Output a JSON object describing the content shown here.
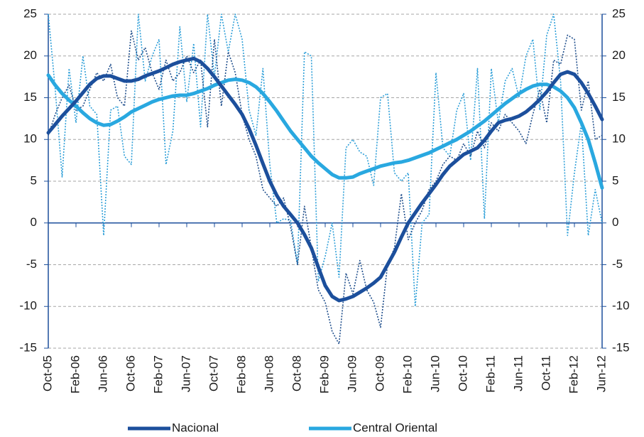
{
  "chart_data": {
    "type": "line",
    "categories": [
      "Oct-05",
      null,
      null,
      null,
      "Feb-06",
      null,
      null,
      null,
      "Jun-06",
      null,
      null,
      null,
      "Oct-06",
      null,
      null,
      null,
      "Feb-07",
      null,
      null,
      null,
      "Jun-07",
      null,
      null,
      null,
      "Oct-07",
      null,
      null,
      null,
      "Feb-08",
      null,
      null,
      null,
      "Jun-08",
      null,
      null,
      null,
      "Oct-08",
      null,
      null,
      null,
      "Feb-09",
      null,
      null,
      null,
      "Jun-09",
      null,
      null,
      null,
      "Oct-09",
      null,
      null,
      null,
      "Feb-10",
      null,
      null,
      null,
      "Jun-10",
      null,
      null,
      null,
      "Oct-10",
      null,
      null,
      null,
      "Feb-11",
      null,
      null,
      null,
      "Jun-11",
      null,
      null,
      null,
      "Oct-11",
      null,
      null,
      null,
      "Feb-12",
      null,
      null,
      null,
      "Jun-12"
    ],
    "series": [
      {
        "color": "#2e9fd8",
        "linestyle": "dotted",
        "axis": "y2",
        "values": [
          25,
          16,
          5.5,
          18.5,
          12,
          20,
          14,
          13,
          -1.5,
          13.5,
          14,
          8,
          7,
          25,
          17,
          20,
          22,
          7,
          11,
          23.5,
          14.5,
          21.5,
          11.5,
          25,
          17.5,
          25,
          20.5,
          25,
          22,
          13.5,
          10.5,
          18.5,
          7,
          0,
          0.5,
          0.3,
          -5,
          20.5,
          20,
          -7,
          -4,
          0,
          -6.5,
          9,
          10,
          8.5,
          8,
          4.5,
          15,
          15.5,
          6,
          5,
          6,
          -10,
          0,
          1,
          18,
          9,
          8,
          13.5,
          15.5,
          7.5,
          18.5,
          0.5,
          18.5,
          12,
          17,
          18.5,
          15,
          20,
          22,
          13.5,
          22.5,
          25,
          17,
          -1.5,
          6,
          12,
          -1.5,
          4,
          0
        ]
      },
      {
        "color": "#1f4e8c",
        "linestyle": "dotted",
        "values": [
          10.5,
          13,
          15,
          16.5,
          13.5,
          14,
          16,
          18,
          17,
          19,
          15,
          14,
          23,
          19.5,
          21,
          18,
          16,
          19.5,
          17,
          18,
          20,
          18,
          19.5,
          11.5,
          22,
          14,
          20.5,
          18,
          13,
          10,
          8,
          4,
          3,
          2,
          3,
          -0.5,
          -5,
          2,
          -3,
          -8,
          -9.5,
          -13,
          -14.5,
          -6,
          -8.5,
          -4.5,
          -8,
          -9.5,
          -12.5,
          -5,
          -3,
          3.5,
          -2,
          0,
          1.5,
          4,
          5,
          7,
          8,
          7.5,
          9.5,
          8,
          11,
          9,
          12,
          11,
          13,
          12,
          11,
          9.5,
          13,
          16,
          12,
          19.5,
          19,
          22.5,
          22,
          13.5,
          17,
          10,
          10.5
        ]
      },
      {
        "name": "Central Oriental",
        "color": "#29a8e0",
        "linestyle": "solid",
        "axis": "y2",
        "values": [
          17.7,
          16.5,
          15.5,
          14.7,
          14.0,
          13.2,
          12.5,
          12.0,
          11.7,
          11.8,
          12.2,
          12.7,
          13.3,
          13.7,
          14.1,
          14.5,
          14.8,
          15.0,
          15.2,
          15.3,
          15.3,
          15.5,
          15.8,
          16.1,
          16.5,
          16.8,
          17.1,
          17.2,
          17.1,
          16.8,
          16.3,
          15.5,
          14.5,
          13.4,
          12.2,
          11.0,
          10.0,
          9.0,
          8.0,
          7.2,
          6.5,
          5.8,
          5.4,
          5.4,
          5.5,
          5.9,
          6.2,
          6.5,
          6.8,
          7.0,
          7.2,
          7.3,
          7.5,
          7.8,
          8.1,
          8.4,
          8.8,
          9.2,
          9.6,
          10.0,
          10.5,
          11.0,
          11.6,
          12.2,
          12.9,
          13.6,
          14.3,
          14.9,
          15.5,
          16.0,
          16.4,
          16.6,
          16.6,
          16.3,
          15.8,
          15.0,
          13.8,
          12.0,
          10.0,
          7.2,
          4.2
        ]
      },
      {
        "name": "Nacional",
        "color": "#1c4f9c",
        "linestyle": "solid",
        "values": [
          10.8,
          11.8,
          12.8,
          13.7,
          14.6,
          15.6,
          16.6,
          17.3,
          17.6,
          17.6,
          17.3,
          17.0,
          17.0,
          17.2,
          17.6,
          17.9,
          18.2,
          18.6,
          19.0,
          19.3,
          19.5,
          19.7,
          19.3,
          18.5,
          17.5,
          16.4,
          15.3,
          14.2,
          13.0,
          11.3,
          9.3,
          7.1,
          5.0,
          3.3,
          2.0,
          1.0,
          0.0,
          -1.4,
          -3.0,
          -5.3,
          -7.5,
          -8.8,
          -9.3,
          -9.1,
          -8.8,
          -8.3,
          -7.8,
          -7.2,
          -6.5,
          -5.0,
          -3.5,
          -1.7,
          0.0,
          1.2,
          2.4,
          3.5,
          4.6,
          5.8,
          6.8,
          7.5,
          8.2,
          8.6,
          9.0,
          9.9,
          11.0,
          12.0,
          12.3,
          12.5,
          12.8,
          13.3,
          14.0,
          14.8,
          15.7,
          16.8,
          17.8,
          18.1,
          17.8,
          16.8,
          15.5,
          14.0,
          12.4
        ]
      }
    ],
    "ylim": [
      -15,
      25
    ],
    "yticks": [
      -15,
      -10,
      -5,
      0,
      5,
      10,
      15,
      20,
      25
    ],
    "y2lim": [
      -15,
      25
    ],
    "y2ticks": [
      -15,
      -10,
      -5,
      0,
      5,
      10,
      15,
      20,
      25
    ],
    "grid": true,
    "legend": "bottom"
  }
}
